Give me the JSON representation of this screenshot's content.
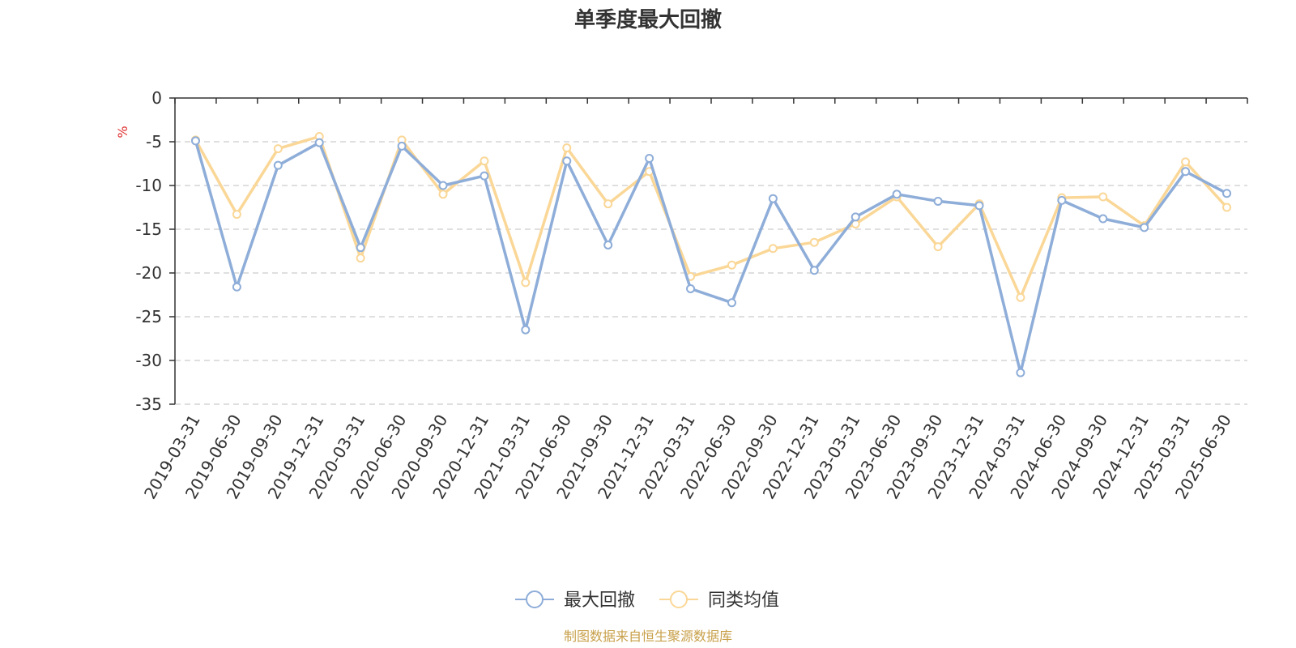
{
  "chart_data": {
    "type": "line",
    "title": "单季度最大回撤",
    "ylabel": "%",
    "ylim": [
      -35,
      0
    ],
    "yticks": [
      0,
      -5,
      -10,
      -15,
      -20,
      -25,
      -30,
      -35
    ],
    "grid": true,
    "legend_position": "bottom",
    "categories": [
      "2019-03-31",
      "2019-06-30",
      "2019-09-30",
      "2019-12-31",
      "2020-03-31",
      "2020-06-30",
      "2020-09-30",
      "2020-12-31",
      "2021-03-31",
      "2021-06-30",
      "2021-09-30",
      "2021-12-31",
      "2022-03-31",
      "2022-06-30",
      "2022-09-30",
      "2022-12-31",
      "2023-03-31",
      "2023-06-30",
      "2023-09-30",
      "2023-12-31",
      "2024-03-31",
      "2024-06-30",
      "2024-09-30",
      "2024-12-31",
      "2025-03-31",
      "2025-06-30"
    ],
    "series": [
      {
        "name": "最大回撤",
        "color": "#8eadd8",
        "values": [
          -4.9,
          -21.6,
          -7.7,
          -5.1,
          -17.1,
          -5.5,
          -10.0,
          -8.9,
          -26.5,
          -7.2,
          -16.8,
          -6.9,
          -21.8,
          -23.4,
          -11.5,
          -19.7,
          -13.6,
          -11.0,
          -11.8,
          -12.3,
          -31.4,
          -11.7,
          -13.8,
          -14.8,
          -8.4,
          -10.9
        ]
      },
      {
        "name": "同类均值",
        "color": "#fad797",
        "values": [
          -4.8,
          -13.3,
          -5.8,
          -4.4,
          -18.3,
          -4.8,
          -11.0,
          -7.2,
          -21.1,
          -5.7,
          -12.1,
          -8.4,
          -20.4,
          -19.1,
          -17.2,
          -16.5,
          -14.4,
          -11.3,
          -17.0,
          -12.1,
          -22.8,
          -11.4,
          -11.3,
          -14.6,
          -7.3,
          -12.5
        ]
      }
    ]
  },
  "footer": {
    "source": "制图数据来自恒生聚源数据库",
    "source_color": "#c8a04a"
  },
  "axis_unit_color": "#e03030"
}
